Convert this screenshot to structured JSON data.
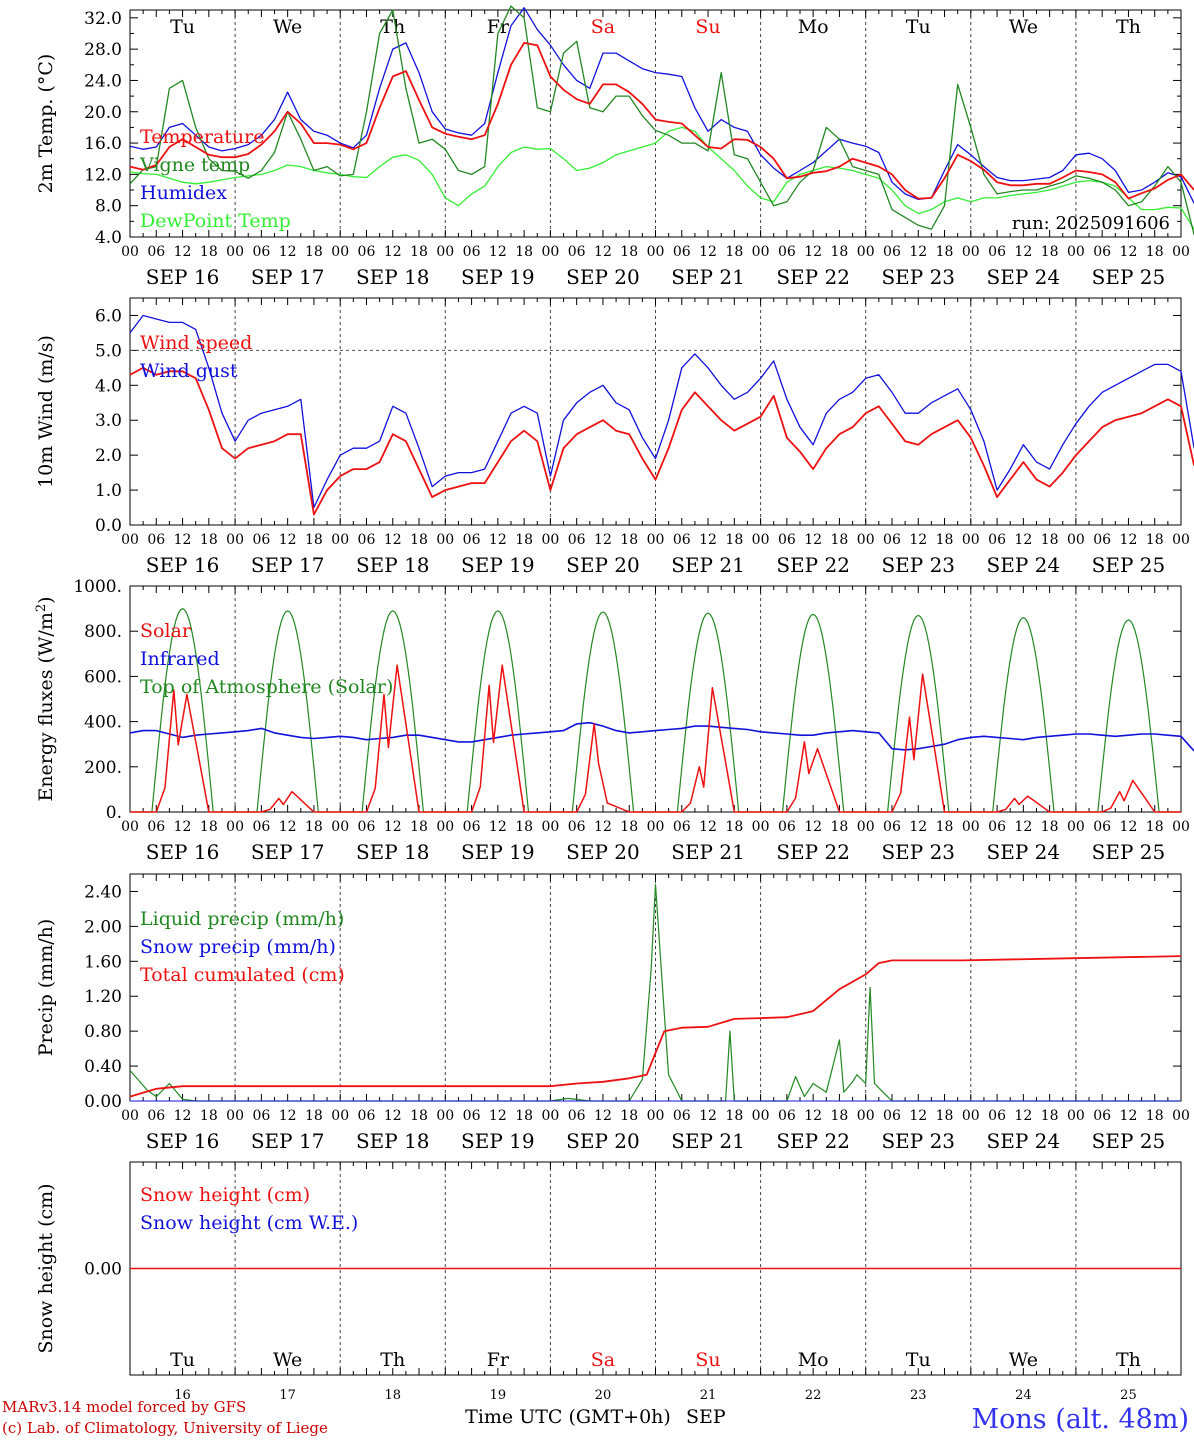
{
  "station": "Mons (alt. 48m)",
  "credits": [
    "MARv3.14 model forced by GFS",
    "(c) Lab. of Climatology, University of Liege"
  ],
  "xaxis_title": "Time UTC (GMT+0h)",
  "month": "SEP",
  "hour_labels": [
    "00",
    "06",
    "12",
    "18"
  ],
  "end_hour_label": "00",
  "days": [
    {
      "dow": "Tu",
      "date": "SEP 16",
      "num": "16",
      "weekend": false
    },
    {
      "dow": "We",
      "date": "SEP 17",
      "num": "17",
      "weekend": false
    },
    {
      "dow": "Th",
      "date": "SEP 18",
      "num": "18",
      "weekend": false
    },
    {
      "dow": "Fr",
      "date": "SEP 19",
      "num": "19",
      "weekend": false
    },
    {
      "dow": "Sa",
      "date": "SEP 20",
      "num": "20",
      "weekend": true
    },
    {
      "dow": "Su",
      "date": "SEP 21",
      "num": "21",
      "weekend": true
    },
    {
      "dow": "Mo",
      "date": "SEP 22",
      "num": "22",
      "weekend": false
    },
    {
      "dow": "Tu",
      "date": "SEP 23",
      "num": "23",
      "weekend": false
    },
    {
      "dow": "We",
      "date": "SEP 24",
      "num": "24",
      "weekend": false
    },
    {
      "dow": "Th",
      "date": "SEP 25",
      "num": "25",
      "weekend": false
    }
  ],
  "colors": {
    "red": "#ee1111",
    "green": "#228822",
    "blue": "#1111dd",
    "lightgreen": "#33ee33",
    "weekend": "#ee1111",
    "station": "#3333ee",
    "credits": "#cc0000"
  },
  "chart_data": [
    {
      "id": "temp",
      "type": "line",
      "ylabel": "2m Temp. (°C)",
      "ylim": [
        4,
        33
      ],
      "yticks": [
        "4.0",
        "8.0",
        "12.0",
        "16.0",
        "20.0",
        "24.0",
        "28.0",
        "32.0"
      ],
      "ytick_values": [
        4,
        8,
        12,
        16,
        20,
        24,
        28,
        32
      ],
      "annotation": "run: 2025091606",
      "show_dow": true,
      "x_hours_step": 3,
      "x_start": 0,
      "x_end": 240,
      "series": [
        {
          "name": "Temperature",
          "color": "red",
          "values": [
            13.0,
            12.6,
            13.2,
            15.5,
            16.5,
            15.5,
            14.5,
            14.2,
            14.2,
            14.6,
            15.8,
            17.5,
            20.0,
            18.5,
            16.0,
            16.0,
            15.8,
            15.2,
            16.0,
            20.5,
            24.5,
            25.2,
            21.5,
            18.0,
            17.2,
            16.8,
            16.5,
            17.0,
            21.0,
            26.0,
            28.8,
            28.5,
            24.5,
            22.8,
            21.6,
            21.0,
            23.5,
            23.5,
            22.5,
            21.0,
            19.0,
            18.7,
            18.5,
            17.0,
            15.5,
            15.3,
            16.5,
            16.4,
            15.5,
            14.0,
            11.5,
            11.7,
            12.2,
            12.4,
            13.0,
            14.0,
            13.5,
            13.0,
            12.0,
            10.0,
            8.9,
            9.0,
            11.5,
            14.5,
            13.7,
            12.6,
            11.0,
            10.6,
            10.6,
            10.8,
            10.8,
            11.6,
            12.5,
            12.3,
            12.0,
            11.0,
            8.9,
            9.6,
            10.2,
            11.3,
            12.0,
            10.0
          ]
        },
        {
          "name": "Vigne temp",
          "color": "green",
          "values": [
            10.8,
            12.6,
            13.0,
            23.0,
            24.0,
            18.0,
            14.0,
            12.5,
            12.4,
            11.5,
            12.5,
            14.8,
            20.0,
            16.5,
            12.5,
            13.0,
            11.8,
            12.0,
            20.0,
            30.0,
            33.0,
            23.0,
            16.0,
            16.5,
            15.2,
            12.5,
            12.0,
            13.0,
            30.0,
            33.5,
            32.0,
            20.5,
            20.0,
            27.5,
            29.0,
            20.5,
            20.0,
            22.0,
            22.0,
            19.5,
            17.6,
            17.0,
            16.0,
            16.0,
            15.0,
            25.0,
            14.5,
            14.0,
            11.0,
            8.0,
            8.5,
            11.0,
            12.5,
            18.0,
            16.5,
            13.0,
            12.5,
            12.0,
            7.5,
            6.5,
            5.5,
            5.0,
            8.0,
            23.5,
            18.0,
            12.0,
            9.5,
            9.8,
            10.0,
            10.0,
            10.5,
            11.0,
            11.8,
            11.5,
            11.0,
            10.0,
            8.0,
            8.5,
            10.5,
            13.0,
            11.0,
            4.3
          ]
        },
        {
          "name": "Humidex",
          "color": "blue",
          "values": [
            15.6,
            15.2,
            15.5,
            18.0,
            18.5,
            17.0,
            15.5,
            15.0,
            15.3,
            15.8,
            17.0,
            19.0,
            22.5,
            19.0,
            17.5,
            17.0,
            16.0,
            15.4,
            17.0,
            23.0,
            28.0,
            28.8,
            25.0,
            20.0,
            17.8,
            17.3,
            17.0,
            18.5,
            25.0,
            31.0,
            33.3,
            30.5,
            28.5,
            26.0,
            24.0,
            23.0,
            27.5,
            27.5,
            26.5,
            25.5,
            25.0,
            24.8,
            24.5,
            20.5,
            17.5,
            19.0,
            18.0,
            17.5,
            14.5,
            12.8,
            11.5,
            12.5,
            13.5,
            15.0,
            16.5,
            16.0,
            15.6,
            14.8,
            11.0,
            9.5,
            8.8,
            9.0,
            12.5,
            15.8,
            14.5,
            13.0,
            11.6,
            11.2,
            11.2,
            11.4,
            11.6,
            12.5,
            14.5,
            14.7,
            14.0,
            12.5,
            9.7,
            10.0,
            11.0,
            12.2,
            11.7,
            8.3
          ]
        },
        {
          "name": "DewPoint Temp",
          "color": "lightgreen",
          "values": [
            12.3,
            12.1,
            12.0,
            11.5,
            11.0,
            10.8,
            11.0,
            11.3,
            11.6,
            11.8,
            12.0,
            12.5,
            13.2,
            13.0,
            12.5,
            12.2,
            12.0,
            11.7,
            11.6,
            13.0,
            14.2,
            14.5,
            13.8,
            12.0,
            9.0,
            8.0,
            9.5,
            10.5,
            13.0,
            14.8,
            15.5,
            15.2,
            15.3,
            14.0,
            12.5,
            12.8,
            13.5,
            14.5,
            15.0,
            15.5,
            16.0,
            17.5,
            18.0,
            17.5,
            15.5,
            14.0,
            12.5,
            10.5,
            9.0,
            8.5,
            11.0,
            12.0,
            12.5,
            13.0,
            12.8,
            12.5,
            12.0,
            11.5,
            10.0,
            8.0,
            7.0,
            7.5,
            8.5,
            9.0,
            8.5,
            9.0,
            9.0,
            9.3,
            9.5,
            9.7,
            10.0,
            10.5,
            11.0,
            11.2,
            11.0,
            10.5,
            9.0,
            7.5,
            7.5,
            7.8,
            7.7,
            5.0
          ]
        }
      ]
    },
    {
      "id": "wind",
      "type": "line",
      "ylabel": "10m Wind (m/s)",
      "ylim": [
        0,
        6.5
      ],
      "yticks": [
        "0.0",
        "1.0",
        "2.0",
        "3.0",
        "4.0",
        "5.0",
        "6.0"
      ],
      "ytick_values": [
        0,
        1,
        2,
        3,
        4,
        5,
        6
      ],
      "refline": 5.0,
      "show_dow": false,
      "x_hours_step": 3,
      "x_start": 0,
      "x_end": 240,
      "series": [
        {
          "name": "Wind speed",
          "color": "red",
          "values": [
            4.3,
            4.5,
            4.3,
            4.4,
            4.4,
            4.2,
            3.3,
            2.2,
            1.9,
            2.2,
            2.3,
            2.4,
            2.6,
            2.6,
            0.3,
            1.0,
            1.4,
            1.6,
            1.6,
            1.8,
            2.6,
            2.4,
            1.6,
            0.8,
            1.0,
            1.1,
            1.2,
            1.2,
            1.8,
            2.4,
            2.7,
            2.4,
            1.0,
            2.2,
            2.6,
            2.8,
            3.0,
            2.7,
            2.6,
            1.9,
            1.3,
            2.2,
            3.3,
            3.8,
            3.4,
            3.0,
            2.7,
            2.9,
            3.1,
            3.7,
            2.5,
            2.1,
            1.6,
            2.2,
            2.6,
            2.8,
            3.2,
            3.4,
            2.9,
            2.4,
            2.3,
            2.6,
            2.8,
            3.0,
            2.5,
            1.7,
            0.8,
            1.3,
            1.8,
            1.3,
            1.1,
            1.5,
            2.0,
            2.4,
            2.8,
            3.0,
            3.1,
            3.2,
            3.4,
            3.6,
            3.4,
            1.7
          ]
        },
        {
          "name": "Wind gust",
          "color": "blue",
          "values": [
            5.5,
            6.0,
            5.9,
            5.8,
            5.8,
            5.6,
            4.5,
            3.2,
            2.4,
            3.0,
            3.2,
            3.3,
            3.4,
            3.6,
            0.5,
            1.3,
            2.0,
            2.2,
            2.2,
            2.4,
            3.4,
            3.2,
            2.2,
            1.1,
            1.4,
            1.5,
            1.5,
            1.6,
            2.4,
            3.2,
            3.4,
            3.2,
            1.4,
            3.0,
            3.5,
            3.8,
            4.0,
            3.5,
            3.3,
            2.5,
            1.9,
            3.0,
            4.5,
            4.9,
            4.5,
            4.0,
            3.6,
            3.8,
            4.2,
            4.7,
            3.6,
            2.8,
            2.3,
            3.2,
            3.6,
            3.8,
            4.2,
            4.3,
            3.8,
            3.2,
            3.2,
            3.5,
            3.7,
            3.9,
            3.3,
            2.4,
            1.0,
            1.6,
            2.3,
            1.8,
            1.6,
            2.3,
            2.9,
            3.4,
            3.8,
            4.0,
            4.2,
            4.4,
            4.6,
            4.6,
            4.4,
            2.2
          ]
        }
      ]
    },
    {
      "id": "flux",
      "type": "line",
      "ylabel": "Energy fluxes (W/m²)",
      "ylim": [
        0,
        1000
      ],
      "yticks": [
        "0.",
        "200.",
        "400.",
        "600.",
        "800.",
        "1000."
      ],
      "ytick_values": [
        0,
        200,
        400,
        600,
        800,
        1000
      ],
      "show_dow": false,
      "toa_peaks": [
        900,
        890,
        890,
        890,
        885,
        880,
        875,
        870,
        860,
        850
      ],
      "solar_daily": [
        [
          0,
          540,
          520,
          0
        ],
        [
          0,
          60,
          90,
          0
        ],
        [
          0,
          520,
          650,
          0
        ],
        [
          0,
          560,
          650,
          0
        ],
        [
          0,
          390,
          40,
          0
        ],
        [
          0,
          200,
          550,
          0
        ],
        [
          0,
          310,
          280,
          0
        ],
        [
          0,
          420,
          610,
          0
        ],
        [
          0,
          60,
          70,
          0
        ],
        [
          0,
          90,
          140,
          0
        ]
      ],
      "infrared_values": [
        350,
        360,
        360,
        345,
        330,
        340,
        345,
        350,
        355,
        360,
        370,
        350,
        340,
        330,
        325,
        330,
        335,
        330,
        320,
        325,
        330,
        340,
        340,
        330,
        320,
        310,
        310,
        320,
        330,
        340,
        345,
        350,
        355,
        360,
        390,
        395,
        380,
        360,
        350,
        355,
        360,
        365,
        370,
        380,
        380,
        375,
        370,
        365,
        355,
        350,
        345,
        340,
        340,
        350,
        355,
        360,
        355,
        350,
        280,
        275,
        280,
        290,
        300,
        320,
        330,
        335,
        330,
        325,
        320,
        330,
        335,
        340,
        345,
        345,
        340,
        335,
        340,
        345,
        345,
        340,
        335,
        270
      ],
      "series": [
        {
          "name": "Solar",
          "color": "red"
        },
        {
          "name": "Infrared",
          "color": "blue"
        },
        {
          "name": "Top of Atmosphere (Solar)",
          "color": "green"
        }
      ]
    },
    {
      "id": "precip",
      "type": "line",
      "ylabel": "Precip (mm/h)",
      "ylim": [
        0,
        2.6
      ],
      "yticks": [
        "0.00",
        "0.40",
        "0.80",
        "1.20",
        "1.60",
        "2.00",
        "2.40"
      ],
      "ytick_values": [
        0,
        0.4,
        0.8,
        1.2,
        1.6,
        2.0,
        2.4
      ],
      "show_dow": false,
      "liquid_points": [
        [
          0,
          0.35
        ],
        [
          4,
          0.12
        ],
        [
          6,
          0.05
        ],
        [
          9,
          0.2
        ],
        [
          12,
          0.02
        ],
        [
          15,
          0.0
        ],
        [
          96,
          0.0
        ],
        [
          100,
          0.03
        ],
        [
          105,
          0.0
        ],
        [
          114,
          0.0
        ],
        [
          117,
          0.25
        ],
        [
          119,
          1.5
        ],
        [
          120,
          2.48
        ],
        [
          122,
          1.0
        ],
        [
          123,
          0.3
        ],
        [
          126,
          0.0
        ],
        [
          136,
          0.0
        ],
        [
          137,
          0.8
        ],
        [
          138,
          0.0
        ],
        [
          150,
          0.0
        ],
        [
          152,
          0.28
        ],
        [
          154,
          0.05
        ],
        [
          156,
          0.2
        ],
        [
          159,
          0.1
        ],
        [
          162,
          0.7
        ],
        [
          163,
          0.1
        ],
        [
          165,
          0.22
        ],
        [
          166,
          0.3
        ],
        [
          168,
          0.2
        ],
        [
          169,
          1.3
        ],
        [
          170,
          0.2
        ],
        [
          172,
          0.1
        ],
        [
          174,
          0.0
        ],
        [
          240,
          0.0
        ]
      ],
      "cumul_points": [
        [
          0,
          0.05
        ],
        [
          6,
          0.14
        ],
        [
          12,
          0.17
        ],
        [
          24,
          0.17
        ],
        [
          96,
          0.17
        ],
        [
          102,
          0.2
        ],
        [
          108,
          0.22
        ],
        [
          114,
          0.26
        ],
        [
          118,
          0.3
        ],
        [
          120,
          0.55
        ],
        [
          122,
          0.8
        ],
        [
          126,
          0.84
        ],
        [
          132,
          0.85
        ],
        [
          138,
          0.94
        ],
        [
          144,
          0.95
        ],
        [
          150,
          0.96
        ],
        [
          156,
          1.03
        ],
        [
          162,
          1.28
        ],
        [
          168,
          1.45
        ],
        [
          171,
          1.58
        ],
        [
          174,
          1.61
        ],
        [
          190,
          1.61
        ],
        [
          210,
          1.63
        ],
        [
          240,
          1.66
        ]
      ],
      "series": [
        {
          "name": "Liquid precip (mm/h)",
          "color": "green"
        },
        {
          "name": "Snow precip (mm/h)",
          "color": "blue"
        },
        {
          "name": "Total cumulated (cm)",
          "color": "red"
        }
      ]
    },
    {
      "id": "snow",
      "type": "line",
      "ylabel": "Snow height (cm)",
      "ylim": [
        -1,
        1
      ],
      "yticks": [
        "0.00"
      ],
      "ytick_values": [
        0
      ],
      "show_dow_bottom": true,
      "series": [
        {
          "name": "Snow height (cm)",
          "color": "red",
          "values": [
            0,
            0
          ]
        },
        {
          "name": "Snow height (cm W.E.)",
          "color": "blue"
        }
      ]
    }
  ]
}
